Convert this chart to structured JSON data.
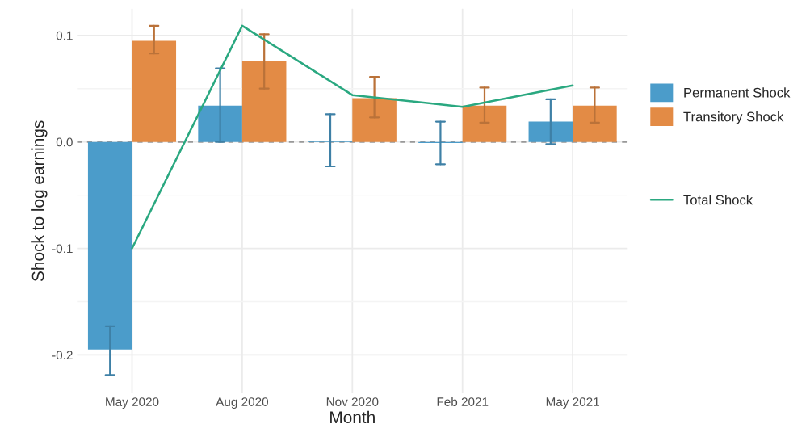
{
  "chart_data": {
    "type": "bar",
    "xlabel": "Month",
    "ylabel": "Shock to log earnings",
    "categories": [
      "May 2020",
      "Aug 2020",
      "Nov 2020",
      "Feb 2021",
      "May 2021"
    ],
    "series": [
      {
        "name": "Permanent Shock",
        "color": "#4b9cca",
        "values": [
          -0.195,
          0.034,
          0.001,
          -0.001,
          0.019
        ],
        "errors": [
          [
            -0.219,
            -0.173
          ],
          [
            0.0,
            0.069
          ],
          [
            -0.023,
            0.026
          ],
          [
            -0.021,
            0.019
          ],
          [
            -0.002,
            0.04
          ]
        ]
      },
      {
        "name": "Transitory Shock",
        "color": "#e38b45",
        "values": [
          0.095,
          0.076,
          0.041,
          0.034,
          0.034
        ],
        "errors": [
          [
            0.083,
            0.109
          ],
          [
            0.05,
            0.101
          ],
          [
            0.023,
            0.061
          ],
          [
            0.018,
            0.051
          ],
          [
            0.018,
            0.051
          ]
        ]
      },
      {
        "name": "Total Shock",
        "type": "line",
        "color": "#2aa880",
        "values": [
          -0.1,
          0.109,
          0.044,
          0.033,
          0.053
        ]
      }
    ],
    "ylim": [
      -0.236,
      0.125
    ],
    "yticks": [
      {
        "value": -0.2,
        "label": "-0.2"
      },
      {
        "value": -0.15,
        "label": null
      },
      {
        "value": -0.1,
        "label": "-0.1"
      },
      {
        "value": -0.05,
        "label": null
      },
      {
        "value": 0.0,
        "label": "0.0"
      },
      {
        "value": 0.05,
        "label": null
      },
      {
        "value": 0.1,
        "label": "0.1"
      }
    ],
    "ref_lines": [
      {
        "axis": "y",
        "value": 0.0,
        "color": "#999999",
        "line_style": "dashed"
      }
    ],
    "grid": true,
    "legend": "right"
  }
}
